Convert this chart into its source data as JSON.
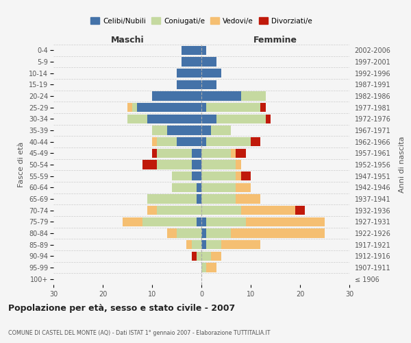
{
  "age_groups": [
    "100+",
    "95-99",
    "90-94",
    "85-89",
    "80-84",
    "75-79",
    "70-74",
    "65-69",
    "60-64",
    "55-59",
    "50-54",
    "45-49",
    "40-44",
    "35-39",
    "30-34",
    "25-29",
    "20-24",
    "15-19",
    "10-14",
    "5-9",
    "0-4"
  ],
  "birth_years": [
    "≤ 1906",
    "1907-1911",
    "1912-1916",
    "1917-1921",
    "1922-1926",
    "1927-1931",
    "1932-1936",
    "1937-1941",
    "1942-1946",
    "1947-1951",
    "1952-1956",
    "1957-1961",
    "1962-1966",
    "1967-1971",
    "1972-1976",
    "1977-1981",
    "1982-1986",
    "1987-1991",
    "1992-1996",
    "1997-2001",
    "2002-2006"
  ],
  "maschi": {
    "celibi": [
      0,
      0,
      0,
      0,
      0,
      1,
      0,
      1,
      1,
      2,
      2,
      2,
      5,
      7,
      11,
      13,
      10,
      5,
      5,
      4,
      4
    ],
    "coniugati": [
      0,
      0,
      1,
      2,
      5,
      11,
      9,
      10,
      5,
      4,
      7,
      7,
      4,
      3,
      4,
      1,
      0,
      0,
      0,
      0,
      0
    ],
    "vedovi": [
      0,
      0,
      0,
      1,
      2,
      4,
      2,
      0,
      0,
      0,
      0,
      0,
      1,
      0,
      0,
      1,
      0,
      0,
      0,
      0,
      0
    ],
    "divorziati": [
      0,
      0,
      1,
      0,
      0,
      0,
      0,
      0,
      0,
      0,
      3,
      1,
      0,
      0,
      0,
      0,
      0,
      0,
      0,
      0,
      0
    ]
  },
  "femmine": {
    "nubili": [
      0,
      0,
      0,
      1,
      1,
      1,
      0,
      0,
      0,
      0,
      0,
      0,
      1,
      2,
      3,
      1,
      8,
      3,
      4,
      3,
      1
    ],
    "coniugate": [
      0,
      1,
      2,
      3,
      5,
      8,
      8,
      7,
      7,
      7,
      7,
      6,
      9,
      4,
      10,
      11,
      5,
      0,
      0,
      0,
      0
    ],
    "vedove": [
      0,
      2,
      2,
      8,
      19,
      16,
      11,
      5,
      3,
      1,
      1,
      1,
      0,
      0,
      0,
      0,
      0,
      0,
      0,
      0,
      0
    ],
    "divorziate": [
      0,
      0,
      0,
      0,
      0,
      0,
      2,
      0,
      0,
      2,
      0,
      2,
      2,
      0,
      1,
      1,
      0,
      0,
      0,
      0,
      0
    ]
  },
  "colors": {
    "celibi_nubili": "#4472a8",
    "coniugati": "#c5d9a0",
    "vedovi": "#f5bf72",
    "divorziati": "#c0190a"
  },
  "xlim": 30,
  "title": "Popolazione per età, sesso e stato civile - 2007",
  "subtitle": "COMUNE DI CASTEL DEL MONTE (AQ) - Dati ISTAT 1° gennaio 2007 - Elaborazione TUTTITALIA.IT",
  "ylabel_left": "Fasce di età",
  "ylabel_right": "Anni di nascita",
  "xlabel_maschi": "Maschi",
  "xlabel_femmine": "Femmine",
  "legend_labels": [
    "Celibi/Nubili",
    "Coniugati/e",
    "Vedovi/e",
    "Divorziati/e"
  ],
  "bg_color": "#f5f5f5"
}
